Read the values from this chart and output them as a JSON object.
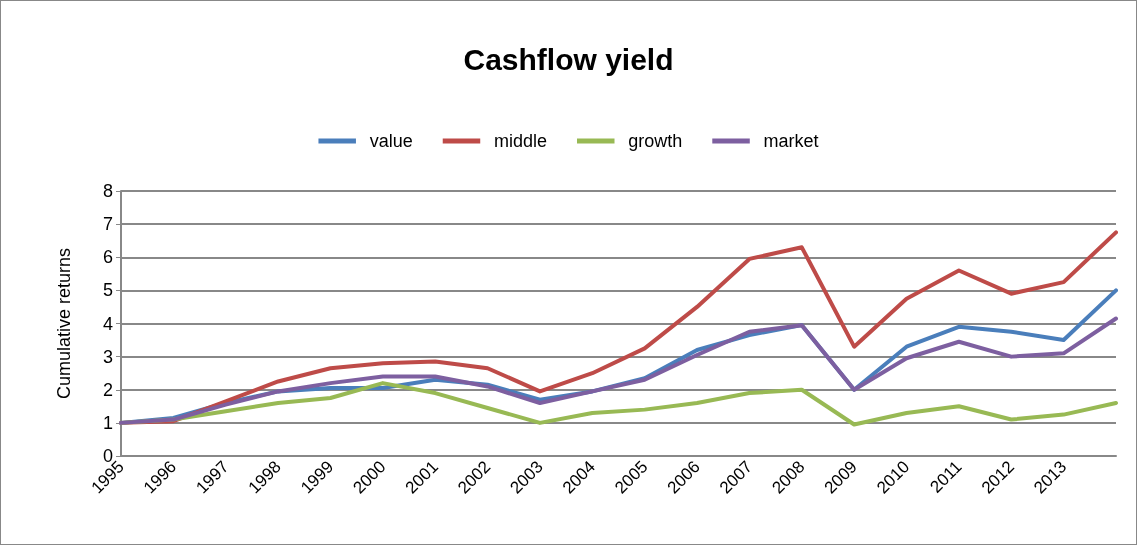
{
  "chart_data": {
    "type": "line",
    "title": "Cashflow yield",
    "ylabel": "Cumulative returns",
    "categories": [
      "1995",
      "1996",
      "1997",
      "1998",
      "1999",
      "2000",
      "2001",
      "2002",
      "2003",
      "2004",
      "2005",
      "2006",
      "2007",
      "2008",
      "2009",
      "2010",
      "2011",
      "2012",
      "2013",
      null
    ],
    "series": [
      {
        "name": "value",
        "color": "#4a7ebb",
        "values": [
          1.0,
          1.15,
          1.6,
          1.95,
          2.05,
          2.05,
          2.3,
          2.15,
          1.7,
          1.95,
          2.35,
          3.2,
          3.65,
          3.95,
          2.0,
          3.3,
          3.9,
          3.75,
          3.5,
          5.0
        ]
      },
      {
        "name": "middle",
        "color": "#be4b48",
        "values": [
          1.0,
          1.05,
          1.65,
          2.25,
          2.65,
          2.8,
          2.85,
          2.65,
          1.95,
          2.5,
          3.25,
          4.5,
          5.95,
          6.3,
          3.3,
          4.75,
          5.6,
          4.9,
          5.25,
          6.75
        ]
      },
      {
        "name": "growth",
        "color": "#98b954",
        "values": [
          1.0,
          1.1,
          1.35,
          1.6,
          1.75,
          2.2,
          1.9,
          1.45,
          1.0,
          1.3,
          1.4,
          1.6,
          1.9,
          2.0,
          0.95,
          1.3,
          1.5,
          1.1,
          1.25,
          1.6
        ]
      },
      {
        "name": "market",
        "color": "#7d5fa0",
        "values": [
          1.0,
          1.1,
          1.55,
          1.95,
          2.2,
          2.4,
          2.4,
          2.1,
          1.6,
          1.95,
          2.3,
          3.05,
          3.75,
          3.95,
          2.0,
          2.95,
          3.45,
          3.0,
          3.1,
          4.15
        ]
      }
    ],
    "ylim": [
      0,
      8
    ],
    "yticks": [
      0,
      1,
      2,
      3,
      4,
      5,
      6,
      7,
      8
    ],
    "grid": "y",
    "legend": "top",
    "marker": "none",
    "line_style": "solid"
  }
}
